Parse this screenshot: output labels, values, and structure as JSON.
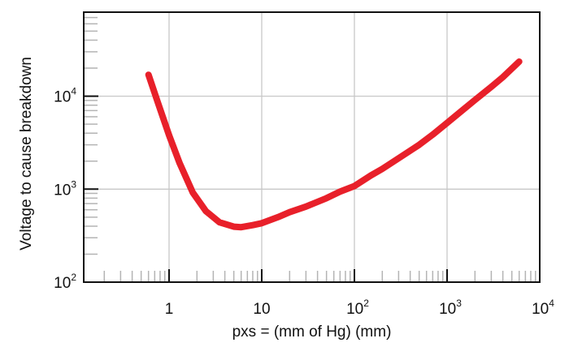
{
  "chart_data": {
    "type": "line",
    "title": "",
    "xlabel": "pxs = (mm of Hg) (mm)",
    "ylabel": "Voltage to cause breakdown",
    "x_scale": "log",
    "y_scale": "log",
    "xlim": [
      0.12,
      10000
    ],
    "ylim": [
      100,
      80000
    ],
    "grid": true,
    "x_ticks": [
      {
        "value": 1,
        "base": "1",
        "exp": ""
      },
      {
        "value": 10,
        "base": "10",
        "exp": ""
      },
      {
        "value": 100,
        "base": "10",
        "exp": "2"
      },
      {
        "value": 1000,
        "base": "10",
        "exp": "3"
      },
      {
        "value": 10000,
        "base": "10",
        "exp": "4"
      }
    ],
    "y_ticks": [
      {
        "value": 100,
        "base": "10",
        "exp": "2"
      },
      {
        "value": 1000,
        "base": "10",
        "exp": "3"
      },
      {
        "value": 10000,
        "base": "10",
        "exp": "4"
      }
    ],
    "series": [
      {
        "color": "#e8202a",
        "x": [
          0.6,
          0.75,
          1.0,
          1.3,
          1.8,
          2.5,
          3.5,
          5.0,
          6.0,
          8.0,
          10,
          15,
          20,
          30,
          50,
          70,
          100,
          150,
          200,
          300,
          500,
          700,
          1000,
          1500,
          2000,
          3000,
          4000,
          6000
        ],
        "y": [
          17000,
          8800,
          3800,
          1900,
          920,
          580,
          440,
          395,
          390,
          410,
          430,
          500,
          565,
          650,
          800,
          940,
          1080,
          1400,
          1650,
          2150,
          3000,
          3850,
          5150,
          7200,
          9100,
          12600,
          16000,
          23500
        ]
      }
    ]
  }
}
